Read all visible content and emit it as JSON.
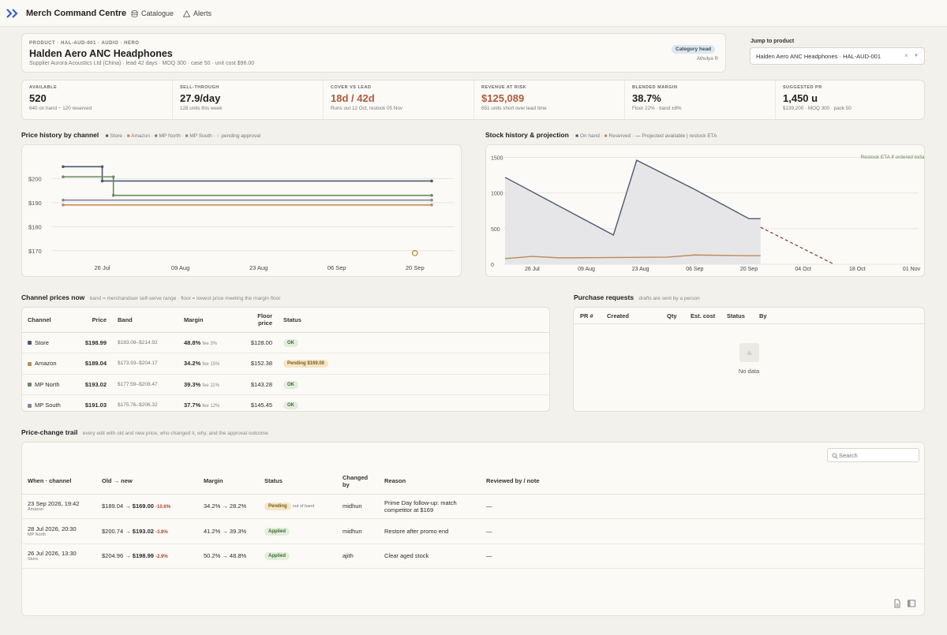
{
  "app": {
    "title": "Merch Command Centre",
    "nav": [
      {
        "label": "Catalogue",
        "icon": "catalogue-icon"
      },
      {
        "label": "Alerts",
        "icon": "alert-icon"
      }
    ]
  },
  "product": {
    "eyebrow": "PRODUCT · HAL-AUD-001 · AUDIO · HERO",
    "name": "Halden Aero ANC Headphones",
    "meta": "Supplier Aurora Acoustics Ltd (China) · lead 42 days · MOQ 300 · case 50 · unit cost $96.00",
    "role_badge": "Category head",
    "role_user": "Athulya R"
  },
  "jump": {
    "label": "Jump to product",
    "value": "Halden Aero ANC Headphones · HAL-AUD-001"
  },
  "kpis": [
    {
      "label": "AVAILABLE",
      "value": "520",
      "sub": "640 on hand − 120 reserved"
    },
    {
      "label": "SELL-THROUGH",
      "value": "27.9/day",
      "sub": "128 units this week"
    },
    {
      "label": "COVER VS LEAD",
      "value": "18d / 42d",
      "sub": "Runs out 12 Oct, restock 05 Nov"
    },
    {
      "label": "REVENUE AT RISK",
      "value": "$125,089",
      "sub": "651 units short over lead time"
    },
    {
      "label": "BLENDED MARGIN",
      "value": "38.7%",
      "sub": "Floor 22% · band ±8%"
    },
    {
      "label": "SUGGESTED PR",
      "value": "1,450 u",
      "sub": "$139,200 · MOQ 300 · pack 50"
    }
  ],
  "price_chart": {
    "title": "Price history by channel",
    "legend": [
      "Store",
      "Amazon",
      "MP North",
      "MP South",
      "pending approval"
    ],
    "chart_data": {
      "type": "line",
      "x": [
        "19 Jul",
        "26 Jul",
        "09 Aug",
        "23 Aug",
        "06 Sep",
        "20 Sep"
      ],
      "xticks": [
        "26 Jul",
        "09 Aug",
        "23 Aug",
        "06 Sep",
        "20 Sep"
      ],
      "yticks": [
        "$200",
        "$190",
        "$180",
        "$170"
      ],
      "ylim": [
        166,
        208
      ],
      "series": [
        {
          "name": "Store",
          "color": "#4a5a6e",
          "points": [
            [
              "19 Jul",
              204.96
            ],
            [
              "26 Jul",
              204.96
            ],
            [
              "26 Jul",
              198.99
            ],
            [
              "23 Sep",
              198.99
            ]
          ]
        },
        {
          "name": "Amazon",
          "color": "#c08a55",
          "points": [
            [
              "19 Jul",
              189.04
            ],
            [
              "23 Sep",
              189.04
            ]
          ]
        },
        {
          "name": "MP North",
          "color": "#6a8a5e",
          "points": [
            [
              "19 Jul",
              200.74
            ],
            [
              "28 Jul",
              200.74
            ],
            [
              "28 Jul",
              193.02
            ],
            [
              "23 Sep",
              193.02
            ]
          ]
        },
        {
          "name": "MP South",
          "color": "#8a8498",
          "points": [
            [
              "19 Jul",
              191.03
            ],
            [
              "23 Sep",
              191.03
            ]
          ]
        }
      ],
      "pending": {
        "name": "pending approval",
        "x": "20 Sep",
        "y": 169.0
      }
    }
  },
  "stock_chart": {
    "title": "Stock history & projection",
    "legend": [
      "On hand",
      "Reserved",
      "Projected available",
      "restock ETA"
    ],
    "restock_label": "Restock ETA if ordered today",
    "chart_data": {
      "type": "area",
      "xticks": [
        "26 Jul",
        "09 Aug",
        "23 Aug",
        "06 Sep",
        "20 Sep",
        "04 Oct",
        "18 Oct",
        "01 Nov"
      ],
      "yticks": [
        "1500",
        "1000",
        "500",
        "0"
      ],
      "ylim": [
        0,
        1550
      ],
      "on_hand": [
        [
          "19 Jul",
          1220
        ],
        [
          "16 Aug",
          410
        ],
        [
          "22 Aug",
          1460
        ],
        [
          "06 Sep",
          1050
        ],
        [
          "20 Sep",
          640
        ],
        [
          "23 Sep",
          640
        ]
      ],
      "reserved": [
        [
          "19 Jul",
          80
        ],
        [
          "26 Jul",
          110
        ],
        [
          "02 Aug",
          90
        ],
        [
          "30 Aug",
          100
        ],
        [
          "06 Sep",
          130
        ],
        [
          "20 Sep",
          120
        ],
        [
          "23 Sep",
          120
        ]
      ],
      "projected": [
        [
          "23 Sep",
          520
        ],
        [
          "12 Oct",
          0
        ]
      ],
      "restock_eta": "05 Nov"
    }
  },
  "channels": {
    "title": "Channel prices now",
    "subtitle": "band = merchandiser self-serve range · floor = lowest price meeting the margin floor",
    "headers": [
      "Channel",
      "Price",
      "Band",
      "Margin",
      "Floor price",
      "Status"
    ],
    "rows": [
      {
        "channel": "Store",
        "color": "#4a5a6e",
        "price": "$198.99",
        "band": "$183.08–$214.92",
        "margin": "48.8%",
        "fee": "fee 3%",
        "floor": "$128.00",
        "status": "OK",
        "pending": false
      },
      {
        "channel": "Amazon",
        "color": "#c08a55",
        "price": "$189.04",
        "band": "$173.93–$204.17",
        "margin": "34.2%",
        "fee": "fee 15%",
        "floor": "$152.38",
        "status": "Pending $169.00",
        "pending": true
      },
      {
        "channel": "MP North",
        "color": "#6a8a5e",
        "price": "$193.02",
        "band": "$177.59–$208.47",
        "margin": "39.3%",
        "fee": "fee 11%",
        "floor": "$143.28",
        "status": "OK",
        "pending": false
      },
      {
        "channel": "MP South",
        "color": "#8a8498",
        "price": "$191.03",
        "band": "$175.76–$206.32",
        "margin": "37.7%",
        "fee": "fee 12%",
        "floor": "$145.45",
        "status": "OK",
        "pending": false
      }
    ]
  },
  "purchase": {
    "title": "Purchase requests",
    "subtitle": "drafts are sent by a person",
    "headers": [
      "PR #",
      "Created",
      "Qty",
      "Est. cost",
      "Status",
      "By"
    ],
    "empty": "No data"
  },
  "trail": {
    "title": "Price-change trail",
    "subtitle": "every edit with old and new price, who changed it, why, and the approval outcome",
    "search_placeholder": "Search",
    "headers": [
      "When · channel",
      "Old → new",
      "Margin",
      "Status",
      "Changed by",
      "Reason",
      "Reviewed by / note"
    ],
    "rows": [
      {
        "when": "23 Sep 2026, 19:42",
        "channel": "Amazon",
        "old": "$189.04",
        "new": "$169.00",
        "delta": "-10.6%",
        "margin": "34.2% → 28.2%",
        "status": "Pending",
        "note": "out of band",
        "by": "midhun",
        "reason": "Prime Day follow-up: match competitor at $169",
        "reviewed": "—",
        "pending": true
      },
      {
        "when": "28 Jul 2026, 20:30",
        "channel": "MP North",
        "old": "$200.74",
        "new": "$193.02",
        "delta": "-3.8%",
        "margin": "41.2% → 39.3%",
        "status": "Applied",
        "note": "",
        "by": "midhun",
        "reason": "Restore after promo end",
        "reviewed": "—",
        "pending": false
      },
      {
        "when": "26 Jul 2026, 13:30",
        "channel": "Store",
        "old": "$204.96",
        "new": "$198.99",
        "delta": "-2.9%",
        "margin": "50.2% → 48.8%",
        "status": "Applied",
        "note": "",
        "by": "ajith",
        "reason": "Clear aged stock",
        "reviewed": "—",
        "pending": false
      }
    ]
  }
}
